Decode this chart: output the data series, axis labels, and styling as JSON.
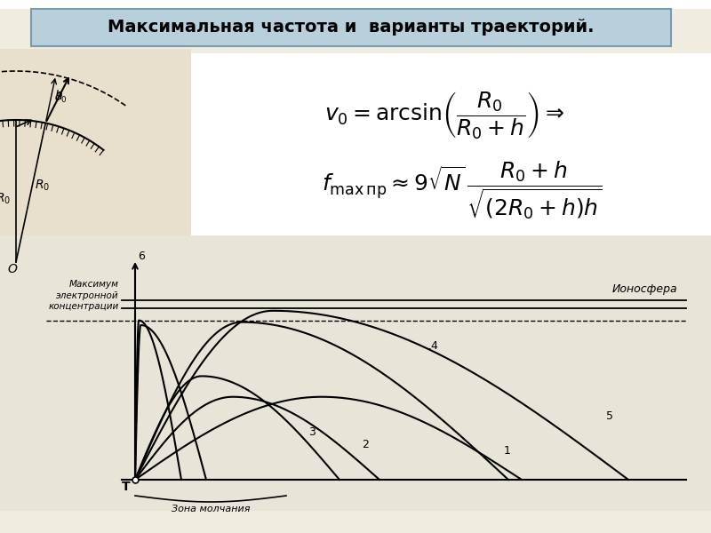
{
  "title": "Максимальная частота и  варианты траекторий.",
  "title_bg": "#b8d0dc",
  "bg_color": "#f0ece0",
  "white_bg": "#ffffff",
  "curve_color": "#111111",
  "label_ionosphere": "Ионосфера",
  "label_max_conc": "Максимум\nэлектронной\nконцентрации",
  "label_silence": "Зона молчания",
  "label_T": "T",
  "label_O": "O"
}
